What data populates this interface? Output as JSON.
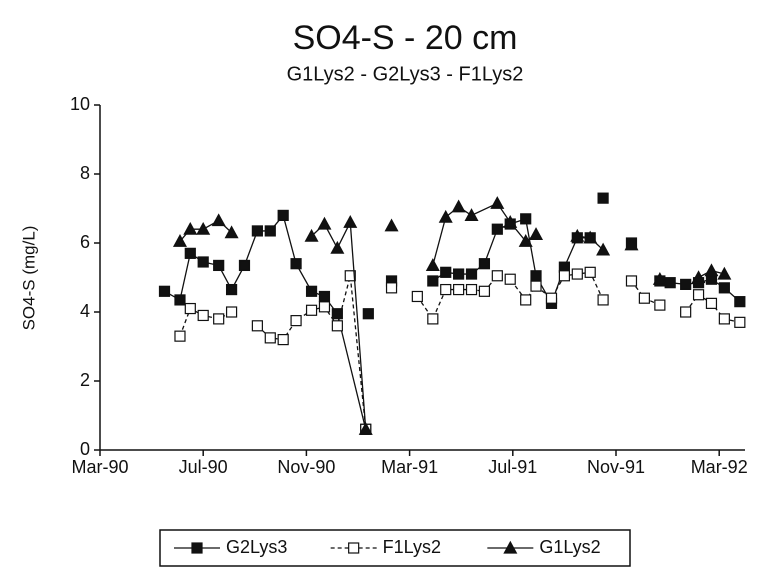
{
  "chart_data": {
    "type": "line",
    "title": "SO4-S - 20 cm",
    "subtitle": "G1Lys2 - G2Lys3 - F1Lys2",
    "y_label": "SO4-S (mg/L)",
    "xlim": [
      0,
      25
    ],
    "xticks": [
      {
        "value": 0,
        "label": "Mar-90"
      },
      {
        "value": 4,
        "label": "Jul-90"
      },
      {
        "value": 8,
        "label": "Nov-90"
      },
      {
        "value": 12,
        "label": "Mar-91"
      },
      {
        "value": 16,
        "label": "Jul-91"
      },
      {
        "value": 20,
        "label": "Nov-91"
      },
      {
        "value": 24,
        "label": "Mar-92"
      }
    ],
    "ylim": [
      0,
      10
    ],
    "yticks": [
      0,
      2,
      4,
      6,
      8,
      10
    ],
    "grid": false,
    "legend": "bottom",
    "series": [
      {
        "name": "G2Lys3",
        "color": "#111111",
        "marker": "square",
        "filled": true,
        "dashed": false,
        "x": [
          2.5,
          3.1,
          3.5,
          4.0,
          4.6,
          5.1,
          5.6,
          6.1,
          6.6,
          7.1,
          7.6,
          8.2,
          8.7,
          9.2,
          10.3,
          null,
          10.4,
          null,
          11.3,
          null,
          12.9,
          13.4,
          13.9,
          14.4,
          14.9,
          15.4,
          15.9,
          16.5,
          16.9,
          17.5,
          18.0,
          18.5,
          19.0,
          null,
          19.5,
          null,
          20.6,
          null,
          21.7,
          22.1,
          22.7,
          23.2,
          23.7,
          24.2,
          24.8
        ],
        "values": [
          4.6,
          4.35,
          5.7,
          5.45,
          5.35,
          4.65,
          5.35,
          6.35,
          6.35,
          6.8,
          5.4,
          4.6,
          4.45,
          3.95,
          0.6,
          null,
          3.95,
          null,
          4.9,
          null,
          4.9,
          5.15,
          5.1,
          5.1,
          5.4,
          6.4,
          6.55,
          6.7,
          5.05,
          4.25,
          5.3,
          6.15,
          6.15,
          null,
          7.3,
          null,
          6.0,
          null,
          4.9,
          4.85,
          4.8,
          4.85,
          4.95,
          4.7,
          4.3
        ]
      },
      {
        "name": "F1Lys2",
        "color": "#111111",
        "marker": "square",
        "filled": false,
        "dashed": true,
        "x": [
          3.1,
          3.5,
          4.0,
          4.6,
          5.1,
          null,
          6.1,
          6.6,
          7.1,
          7.6,
          8.2,
          8.7,
          9.2,
          9.7,
          10.3,
          null,
          11.3,
          null,
          12.3,
          12.9,
          13.4,
          13.9,
          14.4,
          14.9,
          15.4,
          15.9,
          16.5,
          16.9,
          17.5,
          18.0,
          18.5,
          19.0,
          19.5,
          null,
          20.6,
          21.1,
          21.7,
          null,
          22.7,
          23.2,
          23.7,
          24.2,
          24.8
        ],
        "values": [
          3.3,
          4.1,
          3.9,
          3.8,
          4.0,
          null,
          3.6,
          3.25,
          3.2,
          3.75,
          4.05,
          4.15,
          3.6,
          5.05,
          0.6,
          null,
          4.7,
          null,
          4.45,
          3.8,
          4.65,
          4.65,
          4.65,
          4.6,
          5.05,
          4.95,
          4.35,
          4.75,
          4.4,
          5.05,
          5.1,
          5.15,
          4.35,
          null,
          4.9,
          4.4,
          4.2,
          null,
          4.0,
          4.5,
          4.25,
          3.8,
          3.7
        ]
      },
      {
        "name": "G1Lys2",
        "color": "#111111",
        "marker": "triangle",
        "filled": true,
        "dashed": false,
        "x": [
          3.1,
          3.5,
          4.0,
          4.6,
          5.1,
          null,
          8.2,
          8.7,
          9.2,
          9.7,
          10.3,
          null,
          11.3,
          null,
          12.9,
          13.4,
          13.9,
          14.4,
          15.4,
          15.9,
          16.5,
          16.9,
          null,
          18.5,
          19.0,
          19.5,
          null,
          20.6,
          null,
          21.7,
          null,
          23.2,
          23.7,
          24.2
        ],
        "values": [
          6.05,
          6.4,
          6.4,
          6.65,
          6.3,
          null,
          6.2,
          6.55,
          5.85,
          6.6,
          0.6,
          null,
          6.5,
          null,
          5.35,
          6.75,
          7.05,
          6.8,
          7.15,
          6.6,
          6.05,
          6.25,
          null,
          6.2,
          6.15,
          5.8,
          null,
          5.95,
          null,
          4.95,
          null,
          5.0,
          5.2,
          5.1
        ]
      }
    ]
  }
}
